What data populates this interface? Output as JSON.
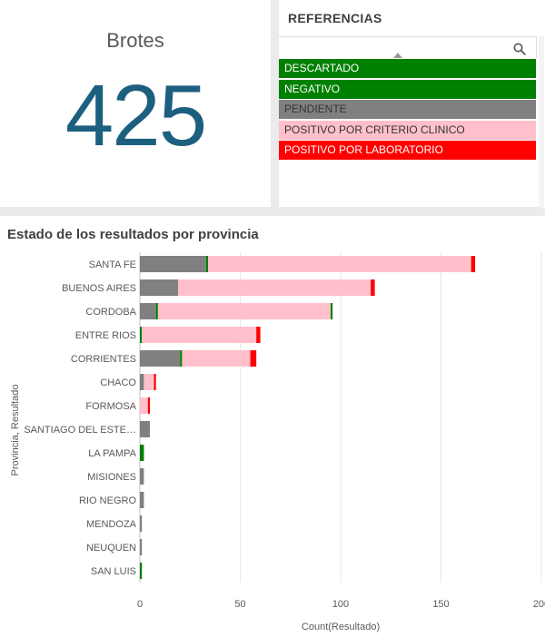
{
  "kpi": {
    "label": "Brotes",
    "value": "425"
  },
  "referencias": {
    "title": "REFERENCIAS",
    "items": [
      {
        "label": "DESCARTADO",
        "bg": "#008000",
        "fg": "#ffffff"
      },
      {
        "label": "NEGATIVO",
        "bg": "#008000",
        "fg": "#ffffff"
      },
      {
        "label": "PENDIENTE",
        "bg": "#808080",
        "fg": "#333333"
      },
      {
        "label": "POSITIVO POR CRITERIO CLINICO",
        "bg": "#ffc0cb",
        "fg": "#333333"
      },
      {
        "label": "POSITIVO POR LABORATORIO",
        "bg": "#ff0000",
        "fg": "#ffffff"
      }
    ]
  },
  "chart_data": {
    "type": "bar",
    "orientation": "horizontal",
    "stacked": true,
    "title": "Estado de los resultados por provincia",
    "xlabel": "Count(Resultado)",
    "ylabel": "Provincia, Resultado",
    "xlim": [
      0,
      200
    ],
    "xticks": [
      0,
      50,
      100,
      150,
      200
    ],
    "grid": true,
    "categories": [
      "SANTA FE",
      "BUENOS AIRES",
      "CORDOBA",
      "ENTRE RIOS",
      "CORRIENTES",
      "CHACO",
      "FORMOSA",
      "SANTIAGO DEL ESTE…",
      "LA PAMPA",
      "MISIONES",
      "RIO NEGRO",
      "MENDOZA",
      "NEUQUEN",
      "SAN LUIS"
    ],
    "series": [
      {
        "name": "PENDIENTE",
        "color": "#808080",
        "values": [
          33,
          19,
          8,
          0,
          20,
          2,
          0,
          5,
          0,
          2,
          2,
          1,
          1,
          0
        ]
      },
      {
        "name": "DESCARTADO",
        "color": "#008000",
        "values": [
          1,
          0,
          1,
          1,
          1,
          0,
          0,
          0,
          2,
          0,
          0,
          0,
          0,
          1
        ]
      },
      {
        "name": "POSITIVO POR CRITERIO CLINICO",
        "color": "#ffc0cb",
        "values": [
          131,
          96,
          86,
          57,
          34,
          5,
          4,
          0,
          0,
          0,
          0,
          0,
          0,
          0
        ]
      },
      {
        "name": "NEGATIVO",
        "color": "#008000",
        "values": [
          0,
          0,
          1,
          0,
          0,
          0,
          0,
          0,
          0,
          0,
          0,
          0,
          0,
          0
        ]
      },
      {
        "name": "POSITIVO POR LABORATORIO",
        "color": "#ff0000",
        "values": [
          2,
          2,
          0,
          2,
          3,
          1,
          1,
          0,
          0,
          0,
          0,
          0,
          0,
          0
        ]
      }
    ]
  }
}
